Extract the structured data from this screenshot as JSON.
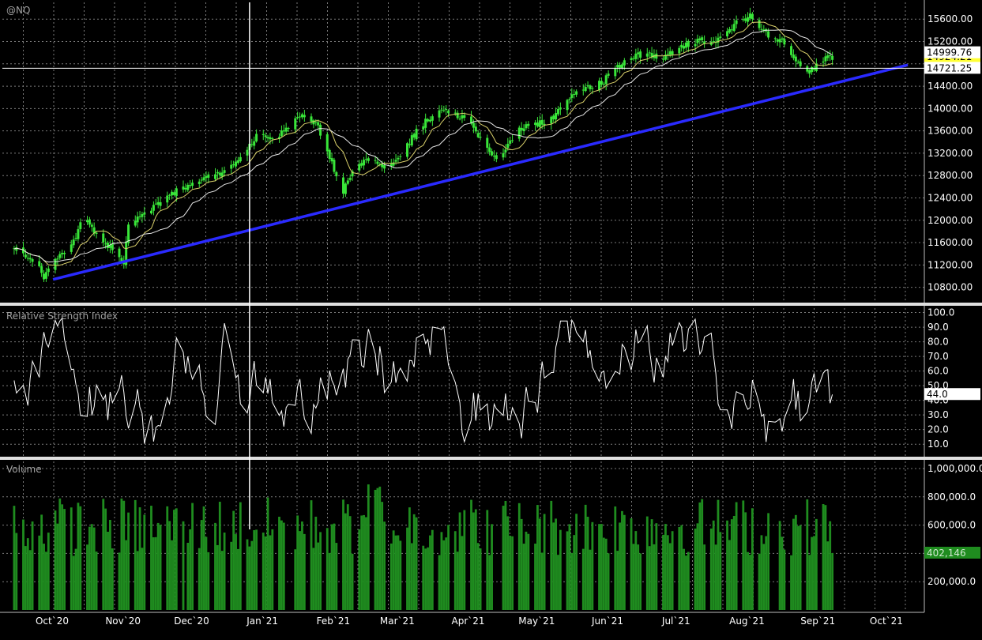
{
  "symbol": "@NQ",
  "rsi_label": "Relative Strength Index",
  "volume_label": "Volume",
  "colors": {
    "background": "#000000",
    "grid": "#7a7a7a",
    "candle": "#39e639",
    "ma_fast": "#d9d06a",
    "ma_slow": "#e8e8e8",
    "trendline": "#2a2aff",
    "rsi": "#ffffff",
    "volume": "#1f8c1f",
    "separator": "#e0e0e0"
  },
  "price_badges": {
    "last": "14721.25",
    "ma_slow_value": "14999.76",
    "ma_fast_value": "14924.21"
  },
  "rsi_badge": "44.0",
  "volume_badge": "402,146",
  "chart_data": [
    {
      "type": "candlestick",
      "pane": "price",
      "title": "@NQ",
      "y_ticks": [
        "15600.00",
        "15200.00",
        "14800.00",
        "14400.00",
        "14000.00",
        "13600.00",
        "13200.00",
        "12800.00",
        "12400.00",
        "12000.00",
        "11600.00",
        "11200.00",
        "10800.00"
      ],
      "ylim": [
        10540,
        15900
      ],
      "x_ticks": [
        "Oct`20",
        "Nov`20",
        "Dec`20",
        "Jan`21",
        "Feb`21",
        "Mar`21",
        "Apr`21",
        "May`21",
        "Jun`21",
        "Jul`21",
        "Aug`21",
        "Sep`21",
        "Oct`21"
      ],
      "x_tick_days": [
        0,
        31,
        61,
        92,
        123,
        151,
        182,
        212,
        243,
        273,
        304,
        335,
        365
      ],
      "close_anchors": [
        [
          -18,
          11500
        ],
        [
          -10,
          11300
        ],
        [
          -5,
          11000
        ],
        [
          0,
          11300
        ],
        [
          8,
          11600
        ],
        [
          12,
          12150
        ],
        [
          18,
          11750
        ],
        [
          24,
          11500
        ],
        [
          27,
          11300
        ],
        [
          30,
          11250
        ],
        [
          32,
          11900
        ],
        [
          38,
          12100
        ],
        [
          45,
          12300
        ],
        [
          52,
          12500
        ],
        [
          60,
          12650
        ],
        [
          68,
          12800
        ],
        [
          76,
          12900
        ],
        [
          82,
          13200
        ],
        [
          90,
          13600
        ],
        [
          96,
          13450
        ],
        [
          102,
          13700
        ],
        [
          108,
          13900
        ],
        [
          114,
          13750
        ],
        [
          118,
          13400
        ],
        [
          122,
          12900
        ],
        [
          126,
          12500
        ],
        [
          130,
          12900
        ],
        [
          136,
          13050
        ],
        [
          142,
          13000
        ],
        [
          148,
          13000
        ],
        [
          152,
          13200
        ],
        [
          158,
          13600
        ],
        [
          164,
          13850
        ],
        [
          170,
          13950
        ],
        [
          175,
          13900
        ],
        [
          180,
          13800
        ],
        [
          185,
          13500
        ],
        [
          190,
          13250
        ],
        [
          194,
          13000
        ],
        [
          198,
          13400
        ],
        [
          204,
          13650
        ],
        [
          210,
          13700
        ],
        [
          216,
          13800
        ],
        [
          222,
          14000
        ],
        [
          228,
          14300
        ],
        [
          234,
          14400
        ],
        [
          240,
          14500
        ],
        [
          246,
          14750
        ],
        [
          252,
          14900
        ],
        [
          258,
          15000
        ],
        [
          264,
          14900
        ],
        [
          270,
          15000
        ],
        [
          276,
          15150
        ],
        [
          282,
          15200
        ],
        [
          288,
          15150
        ],
        [
          292,
          15300
        ],
        [
          298,
          15550
        ],
        [
          304,
          15650
        ],
        [
          310,
          15400
        ],
        [
          314,
          15250
        ],
        [
          318,
          15200
        ],
        [
          322,
          14950
        ],
        [
          326,
          14800
        ],
        [
          330,
          14650
        ],
        [
          334,
          14800
        ],
        [
          338,
          14950
        ],
        [
          342,
          14721.25
        ]
      ],
      "ma_fast": {
        "name": "",
        "value": 14924.21
      },
      "ma_slow": {
        "name": "",
        "value": 14999.76
      },
      "trendline": {
        "start": [
          -1,
          10940
        ],
        "end": [
          373,
          14780
        ]
      },
      "last_value": 14721.25,
      "crosshair": {
        "day": 85
      }
    },
    {
      "type": "line",
      "pane": "rsi",
      "title": "Relative Strength Index",
      "y_ticks": [
        "100.0",
        "90.0",
        "80.0",
        "70.0",
        "60.0",
        "50.0",
        "40.0",
        "30.0",
        "20.0",
        "10.0"
      ],
      "ylim": [
        2,
        103
      ],
      "current_value": 44.0
    },
    {
      "type": "bar",
      "pane": "volume",
      "title": "Volume",
      "y_ticks": [
        "1,000,000.0",
        "800,000.0",
        "600,000.0",
        "400,000.0",
        "200,000.0"
      ],
      "ylim": [
        0,
        1050000
      ],
      "current_value": 402146
    }
  ]
}
